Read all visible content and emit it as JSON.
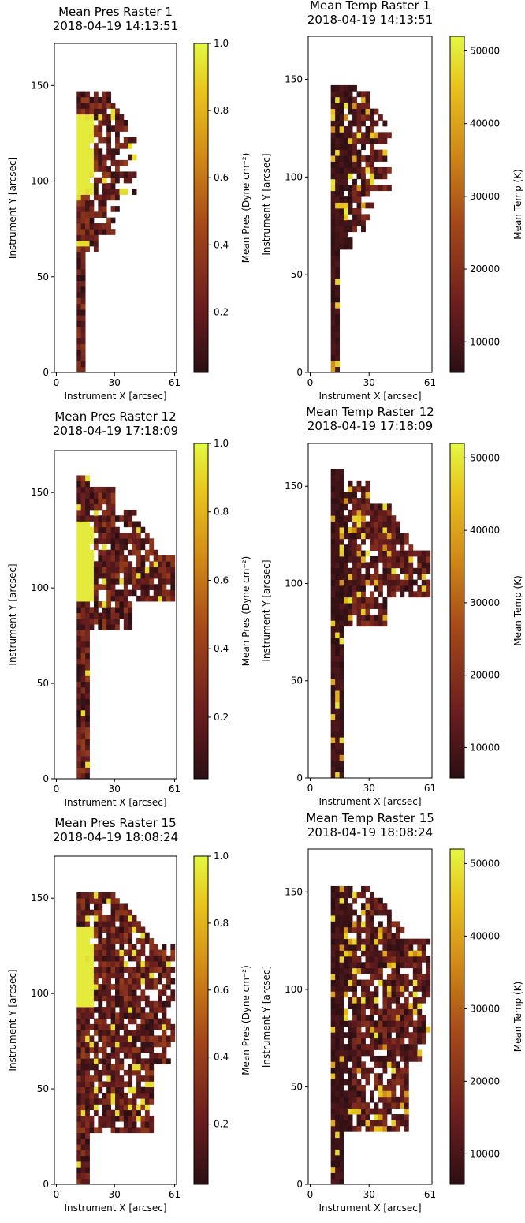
{
  "colormap": [
    "#2b0f14",
    "#6b1e1e",
    "#a5491a",
    "#cf8817",
    "#e8c21f",
    "#e3f843"
  ],
  "chart_data": [
    {
      "type": "heatmap",
      "title": "Mean Pres Raster 1",
      "subtitle": "2018-04-19 14:13:51",
      "xlabel": "Instrument X [arcsec]",
      "ylabel": "Instrument Y [arcsec]",
      "colorbar_label": "Mean Pres (Dyne cm⁻²)",
      "xticks": [
        0,
        30,
        61
      ],
      "yticks": [
        0,
        50,
        100,
        150
      ],
      "xlim": [
        -1,
        62
      ],
      "ylim": [
        0,
        172
      ],
      "cticks": [
        "0.2",
        "0.4",
        "0.6",
        "0.8",
        "1.0"
      ],
      "clim": [
        0.02,
        1.0
      ],
      "field": "pres",
      "extent": "r1"
    },
    {
      "type": "heatmap",
      "title": "Mean Temp Raster 1",
      "subtitle": "2018-04-19 14:13:51",
      "xlabel": "Instrument X [arcsec]",
      "ylabel": "Instrument Y [arcsec]",
      "colorbar_label": "Mean Temp (K)",
      "xticks": [
        0,
        30,
        61
      ],
      "yticks": [
        0,
        50,
        100,
        150
      ],
      "xlim": [
        -1,
        62
      ],
      "ylim": [
        0,
        172
      ],
      "cticks": [
        "10000",
        "20000",
        "30000",
        "40000",
        "50000"
      ],
      "clim": [
        5800,
        52000
      ],
      "field": "temp",
      "extent": "r1"
    },
    {
      "type": "heatmap",
      "title": "Mean Pres Raster 12",
      "subtitle": "2018-04-19 17:18:09",
      "xlabel": "Instrument X [arcsec]",
      "ylabel": "Instrument Y [arcsec]",
      "colorbar_label": "Mean Pres (Dyne cm⁻²)",
      "xticks": [
        0,
        30,
        61
      ],
      "yticks": [
        0,
        50,
        100,
        150
      ],
      "xlim": [
        -1,
        62
      ],
      "ylim": [
        0,
        172
      ],
      "cticks": [
        "0.2",
        "0.4",
        "0.6",
        "0.8",
        "1.0"
      ],
      "clim": [
        0.02,
        1.0
      ],
      "field": "pres",
      "extent": "r12"
    },
    {
      "type": "heatmap",
      "title": "Mean Temp Raster 12",
      "subtitle": "2018-04-19 17:18:09",
      "xlabel": "Instrument X [arcsec]",
      "ylabel": "Instrument Y [arcsec]",
      "colorbar_label": "Mean Temp (K)",
      "xticks": [
        0,
        30,
        61
      ],
      "yticks": [
        0,
        50,
        100,
        150
      ],
      "xlim": [
        -1,
        62
      ],
      "ylim": [
        0,
        172
      ],
      "cticks": [
        "10000",
        "20000",
        "30000",
        "40000",
        "50000"
      ],
      "clim": [
        5800,
        52000
      ],
      "field": "temp",
      "extent": "r12"
    },
    {
      "type": "heatmap",
      "title": "Mean Pres Raster 15",
      "subtitle": "2018-04-19 18:08:24",
      "xlabel": "Instrument X [arcsec]",
      "ylabel": "Instrument Y [arcsec]",
      "colorbar_label": "Mean Pres (Dyne cm⁻²)",
      "xticks": [
        0,
        30,
        61
      ],
      "yticks": [
        0,
        50,
        100,
        150
      ],
      "xlim": [
        -1,
        62
      ],
      "ylim": [
        0,
        172
      ],
      "cticks": [
        "0.2",
        "0.4",
        "0.6",
        "0.8",
        "1.0"
      ],
      "clim": [
        0.02,
        1.0
      ],
      "field": "pres",
      "extent": "r15"
    },
    {
      "type": "heatmap",
      "title": "Mean Temp Raster 15",
      "subtitle": "2018-04-19 18:08:24",
      "xlabel": "Instrument X [arcsec]",
      "ylabel": "Instrument Y [arcsec]",
      "colorbar_label": "Mean Temp (K)",
      "xticks": [
        0,
        30,
        61
      ],
      "yticks": [
        0,
        50,
        100,
        150
      ],
      "xlim": [
        -1,
        62
      ],
      "ylim": [
        0,
        172
      ],
      "cticks": [
        "10000",
        "20000",
        "30000",
        "40000",
        "50000"
      ],
      "clim": [
        5800,
        52000
      ],
      "field": "temp",
      "extent": "r15"
    }
  ]
}
